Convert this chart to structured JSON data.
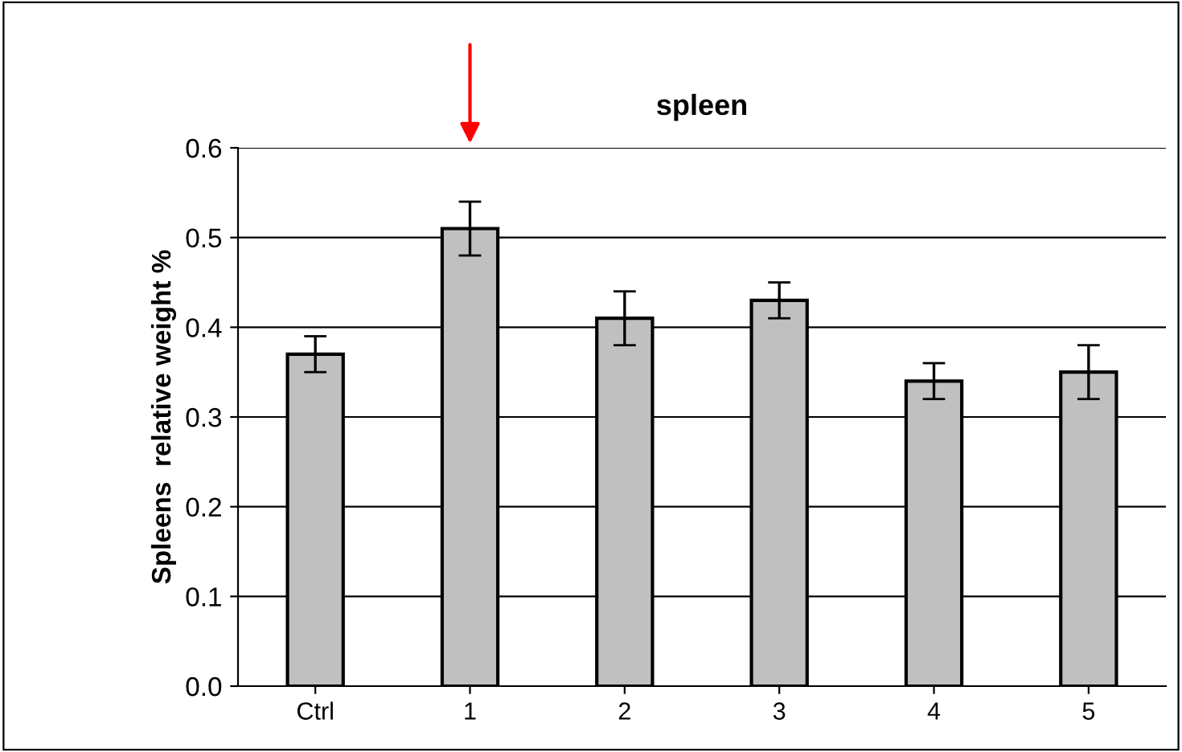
{
  "chart_data": {
    "type": "bar",
    "title": "spleen",
    "ylabel": "Spleens  relative weight %",
    "categories": [
      "Ctrl",
      "1",
      "2",
      "3",
      "4",
      "5"
    ],
    "values": [
      0.37,
      0.51,
      0.41,
      0.43,
      0.34,
      0.35
    ],
    "errors": [
      0.02,
      0.03,
      0.03,
      0.02,
      0.02,
      0.03
    ],
    "color": "#c0c0c0",
    "ylim": [
      0,
      0.6
    ],
    "yticks": [
      {
        "value": 0,
        "label": "0.0"
      },
      {
        "value": 0.1,
        "label": "0.1"
      },
      {
        "value": 0.2,
        "label": "0.2"
      },
      {
        "value": 0.3,
        "label": "0.3"
      },
      {
        "value": 0.4,
        "label": "0.4"
      },
      {
        "value": 0.5,
        "label": "0.5"
      },
      {
        "value": 0.6,
        "label": "0.6"
      }
    ],
    "grid": "y"
  }
}
